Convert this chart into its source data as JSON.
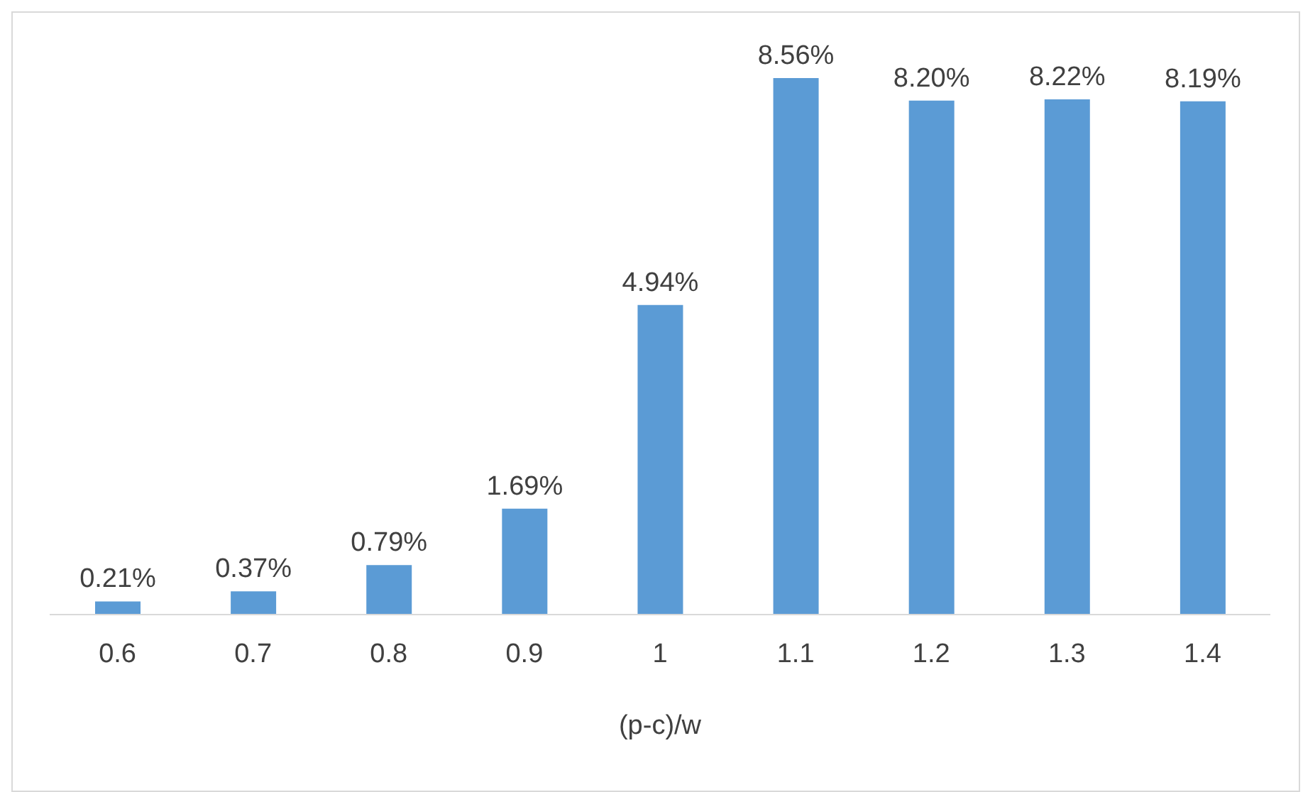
{
  "chart_data": {
    "type": "bar",
    "xlabel": "(p-c)/w",
    "categories": [
      "0.6",
      "0.7",
      "0.8",
      "0.9",
      "1",
      "1.1",
      "1.2",
      "1.3",
      "1.4"
    ],
    "values": [
      0.21,
      0.37,
      0.79,
      1.69,
      4.94,
      8.56,
      8.2,
      8.22,
      8.19
    ],
    "value_labels": [
      "0.21%",
      "0.37%",
      "0.79%",
      "1.69%",
      "4.94%",
      "8.56%",
      "8.20%",
      "8.22%",
      "8.19%"
    ],
    "color": "#5b9bd5",
    "grid": false,
    "legend": false
  }
}
